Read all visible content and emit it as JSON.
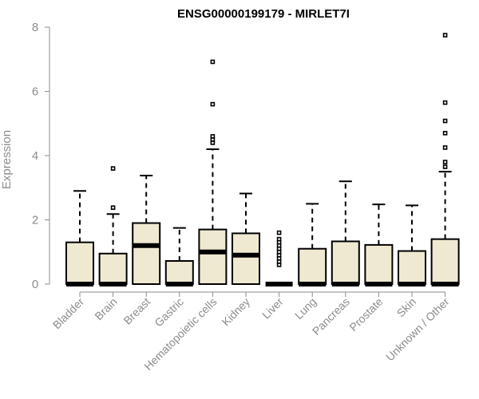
{
  "chart_data": {
    "type": "boxplot",
    "title": "ENSG00000199179 - MIRLET7I",
    "xlabel": "",
    "ylabel": "Expression",
    "ylim": [
      0,
      8
    ],
    "yticks": [
      0,
      2,
      4,
      6,
      8
    ],
    "box_color": "#efe9d2",
    "grid": false,
    "categories": [
      "Bladder",
      "Brain",
      "Breast",
      "Gastric",
      "Hematopoietic cells",
      "Kidney",
      "Liver",
      "Lung",
      "Pancreas",
      "Prostate",
      "Skin",
      "Unknown / Other"
    ],
    "boxes": [
      {
        "category": "Bladder",
        "whisker_low": 0,
        "q1": 0,
        "median": 0,
        "q3": 1.3,
        "whisker_high": 2.9,
        "outliers": []
      },
      {
        "category": "Brain",
        "whisker_low": 0,
        "q1": 0,
        "median": 0,
        "q3": 0.95,
        "whisker_high": 2.18,
        "outliers": [
          2.38,
          3.6
        ]
      },
      {
        "category": "Breast",
        "whisker_low": 0,
        "q1": 0,
        "median": 1.2,
        "q3": 1.9,
        "whisker_high": 3.38,
        "outliers": []
      },
      {
        "category": "Gastric",
        "whisker_low": 0,
        "q1": 0,
        "median": 0,
        "q3": 0.72,
        "whisker_high": 1.75,
        "outliers": []
      },
      {
        "category": "Hematopoietic cells",
        "whisker_low": 0,
        "q1": 0,
        "median": 1.0,
        "q3": 1.7,
        "whisker_high": 4.2,
        "outliers": [
          4.4,
          4.5,
          4.6,
          5.6,
          6.92
        ]
      },
      {
        "category": "Kidney",
        "whisker_low": 0,
        "q1": 0,
        "median": 0.9,
        "q3": 1.58,
        "whisker_high": 2.82,
        "outliers": []
      },
      {
        "category": "Liver",
        "whisker_low": 0,
        "q1": 0,
        "median": 0,
        "q3": 0,
        "whisker_high": 0,
        "outliers": [
          0.6,
          0.7,
          0.8,
          0.9,
          1.0,
          1.1,
          1.2,
          1.3,
          1.4,
          1.6
        ]
      },
      {
        "category": "Lung",
        "whisker_low": 0,
        "q1": 0,
        "median": 0,
        "q3": 1.1,
        "whisker_high": 2.5,
        "outliers": []
      },
      {
        "category": "Pancreas",
        "whisker_low": 0,
        "q1": 0,
        "median": 0,
        "q3": 1.33,
        "whisker_high": 3.2,
        "outliers": []
      },
      {
        "category": "Prostate",
        "whisker_low": 0,
        "q1": 0,
        "median": 0,
        "q3": 1.22,
        "whisker_high": 2.48,
        "outliers": []
      },
      {
        "category": "Skin",
        "whisker_low": 0,
        "q1": 0,
        "median": 0,
        "q3": 1.03,
        "whisker_high": 2.45,
        "outliers": []
      },
      {
        "category": "Unknown / Other",
        "whisker_low": 0,
        "q1": 0,
        "median": 0,
        "q3": 1.4,
        "whisker_high": 3.5,
        "outliers": [
          3.65,
          3.8,
          4.25,
          4.7,
          5.08,
          5.65,
          7.75
        ]
      }
    ]
  }
}
